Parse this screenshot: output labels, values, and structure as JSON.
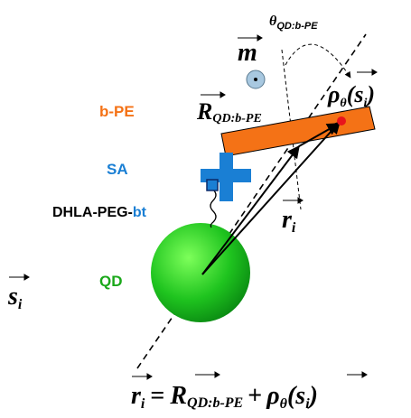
{
  "labels": {
    "theta": {
      "symbol": "θ",
      "sub": "QD:b-PE"
    },
    "m": "m",
    "bpe": "b-PE",
    "R": {
      "symbol": "R",
      "sub": "QD:b-PE"
    },
    "rho": {
      "symbol": "ρ",
      "sub": "θ",
      "open": "(",
      "arg": "s",
      "arg_sub": "i",
      "close": ")"
    },
    "sa": "SA",
    "linker": {
      "main": "DHLA-PEG-",
      "tail": "bt"
    },
    "r": {
      "symbol": "r",
      "sub": "i"
    },
    "qd": "QD",
    "s": {
      "symbol": "s",
      "sub": "i"
    },
    "equation": {
      "eq": "=",
      "plus": "+"
    }
  }
}
